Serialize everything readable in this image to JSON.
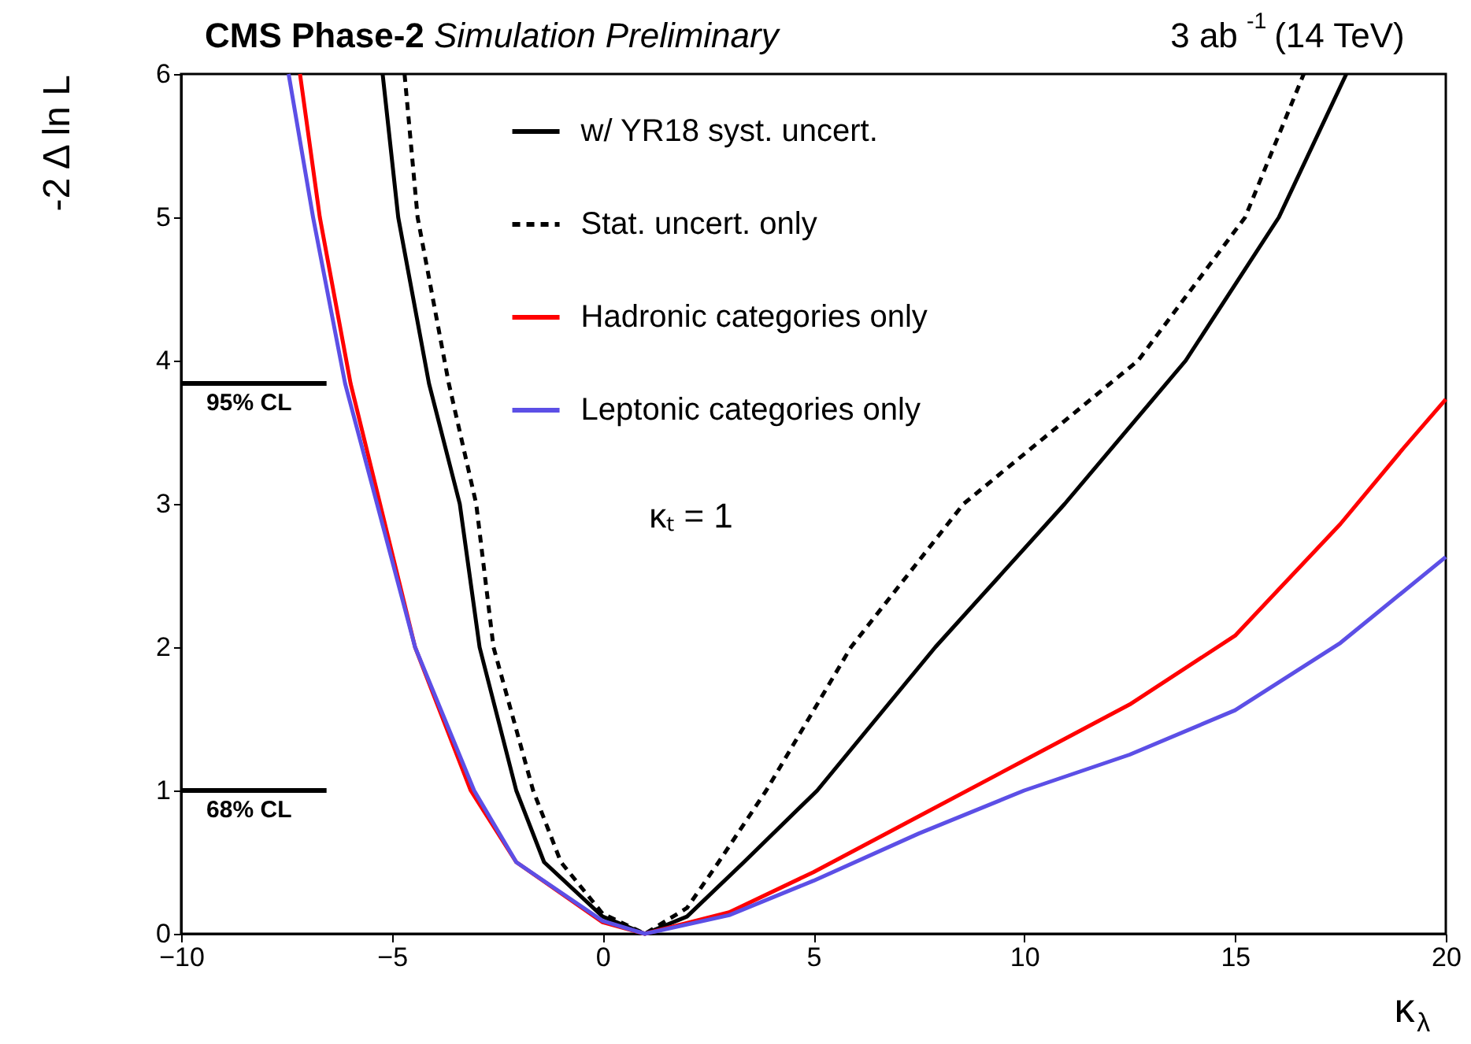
{
  "chart_data": {
    "type": "line",
    "title": "CMS Phase-2",
    "subtitle": "Simulation Preliminary",
    "xlabel": "κ$_{λ}$",
    "ylabel": "-2 Δ ln L",
    "annotations": [
      "3 ab$^{-1}$ (14 TeV)",
      "κₜ = 1"
    ],
    "xlim": [
      -10,
      20
    ],
    "ylim": [
      0,
      6
    ],
    "xticks": [
      -10,
      -5,
      0,
      5,
      10,
      15,
      20
    ],
    "yticks": [
      0,
      1,
      2,
      3,
      4,
      5,
      6
    ],
    "grid": false,
    "legend": "top",
    "marker": "none",
    "ref_lines": [
      {
        "axis": "y",
        "value": 3.84,
        "label": "95% CL",
        "color": "#000000"
      },
      {
        "axis": "y",
        "value": 1,
        "label": "68% CL",
        "color": "#000000"
      }
    ],
    "series": [
      {
        "name": "w/ YR18 syst. uncert.",
        "color": "#000000",
        "line_style": "solid",
        "x": [
          -5.22,
          -4.85,
          -4.12,
          -3.39,
          -2.92,
          -2.05,
          -1.39,
          0,
          1,
          2,
          3.35,
          5.09,
          7.89,
          10.96,
          13.83,
          16.04,
          17.64
        ],
        "values": [
          6,
          5,
          3.84,
          3,
          2,
          1,
          0.5,
          0.12,
          0,
          0.12,
          0.5,
          1,
          2,
          3,
          4,
          5,
          6
        ]
      },
      {
        "name": "Stat. uncert. only",
        "color": "#000000",
        "line_style": "dashed",
        "x": [
          -4.7,
          -4.39,
          -3.65,
          -3.0,
          -2.59,
          -1.65,
          -0.99,
          0,
          1,
          2,
          2.75,
          3.88,
          5.89,
          8.56,
          12.7,
          15.24,
          16.63
        ],
        "values": [
          6,
          5,
          3.84,
          3,
          2,
          1,
          0.5,
          0.14,
          0,
          0.18,
          0.5,
          1,
          2,
          3,
          4,
          5,
          6
        ]
      },
      {
        "name": "Hadronic categories only",
        "color": "#ff0000",
        "line_style": "solid",
        "x": [
          -7.18,
          -6.71,
          -5.98,
          -4.45,
          -3.13,
          -2.05,
          0,
          1,
          3,
          5,
          7.5,
          10,
          12.5,
          15,
          17.5,
          19,
          20
        ],
        "values": [
          6,
          5,
          3.84,
          2,
          1,
          0.5,
          0.08,
          0,
          0.15,
          0.43,
          0.82,
          1.21,
          1.6,
          2.08,
          2.86,
          3.39,
          3.73
        ]
      },
      {
        "name": "Leptonic categories only",
        "color": "#5c4fe6",
        "line_style": "solid",
        "x": [
          -7.45,
          -6.87,
          -6.11,
          -4.45,
          -3.05,
          -2.05,
          0,
          1,
          3,
          5,
          7.5,
          10,
          12.5,
          15,
          17.5,
          20
        ],
        "values": [
          6,
          5,
          3.84,
          2,
          1,
          0.5,
          0.09,
          0,
          0.13,
          0.37,
          0.7,
          1.0,
          1.25,
          1.56,
          2.03,
          2.63
        ]
      }
    ]
  }
}
